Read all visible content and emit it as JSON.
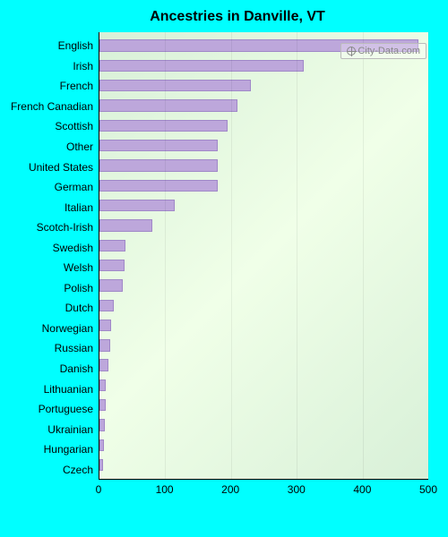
{
  "chart": {
    "type": "bar-horizontal",
    "title": "Ancestries in Danville, VT",
    "watermark": "City-Data.com",
    "background_page": "#00ffff",
    "plot_bg_gradient_from": "#d8f0d8",
    "plot_bg_gradient_to": "#f0ffe8",
    "bar_fill": "#bda7db",
    "bar_border": "#a088c8",
    "axis_color": "#000000",
    "grid_color": "rgba(0,0,0,0.06)",
    "label_fontsize": 12,
    "title_fontsize": 16,
    "xlim": [
      0,
      500
    ],
    "xticks": [
      0,
      100,
      200,
      300,
      400,
      500
    ],
    "categories": [
      "English",
      "Irish",
      "French",
      "French Canadian",
      "Scottish",
      "Other",
      "United States",
      "German",
      "Italian",
      "Scotch-Irish",
      "Swedish",
      "Welsh",
      "Polish",
      "Dutch",
      "Norwegian",
      "Russian",
      "Danish",
      "Lithuanian",
      "Portuguese",
      "Ukrainian",
      "Hungarian",
      "Czech"
    ],
    "values": [
      485,
      310,
      230,
      210,
      195,
      180,
      180,
      180,
      115,
      80,
      40,
      38,
      35,
      22,
      18,
      16,
      14,
      10,
      9,
      8,
      7,
      5
    ]
  }
}
